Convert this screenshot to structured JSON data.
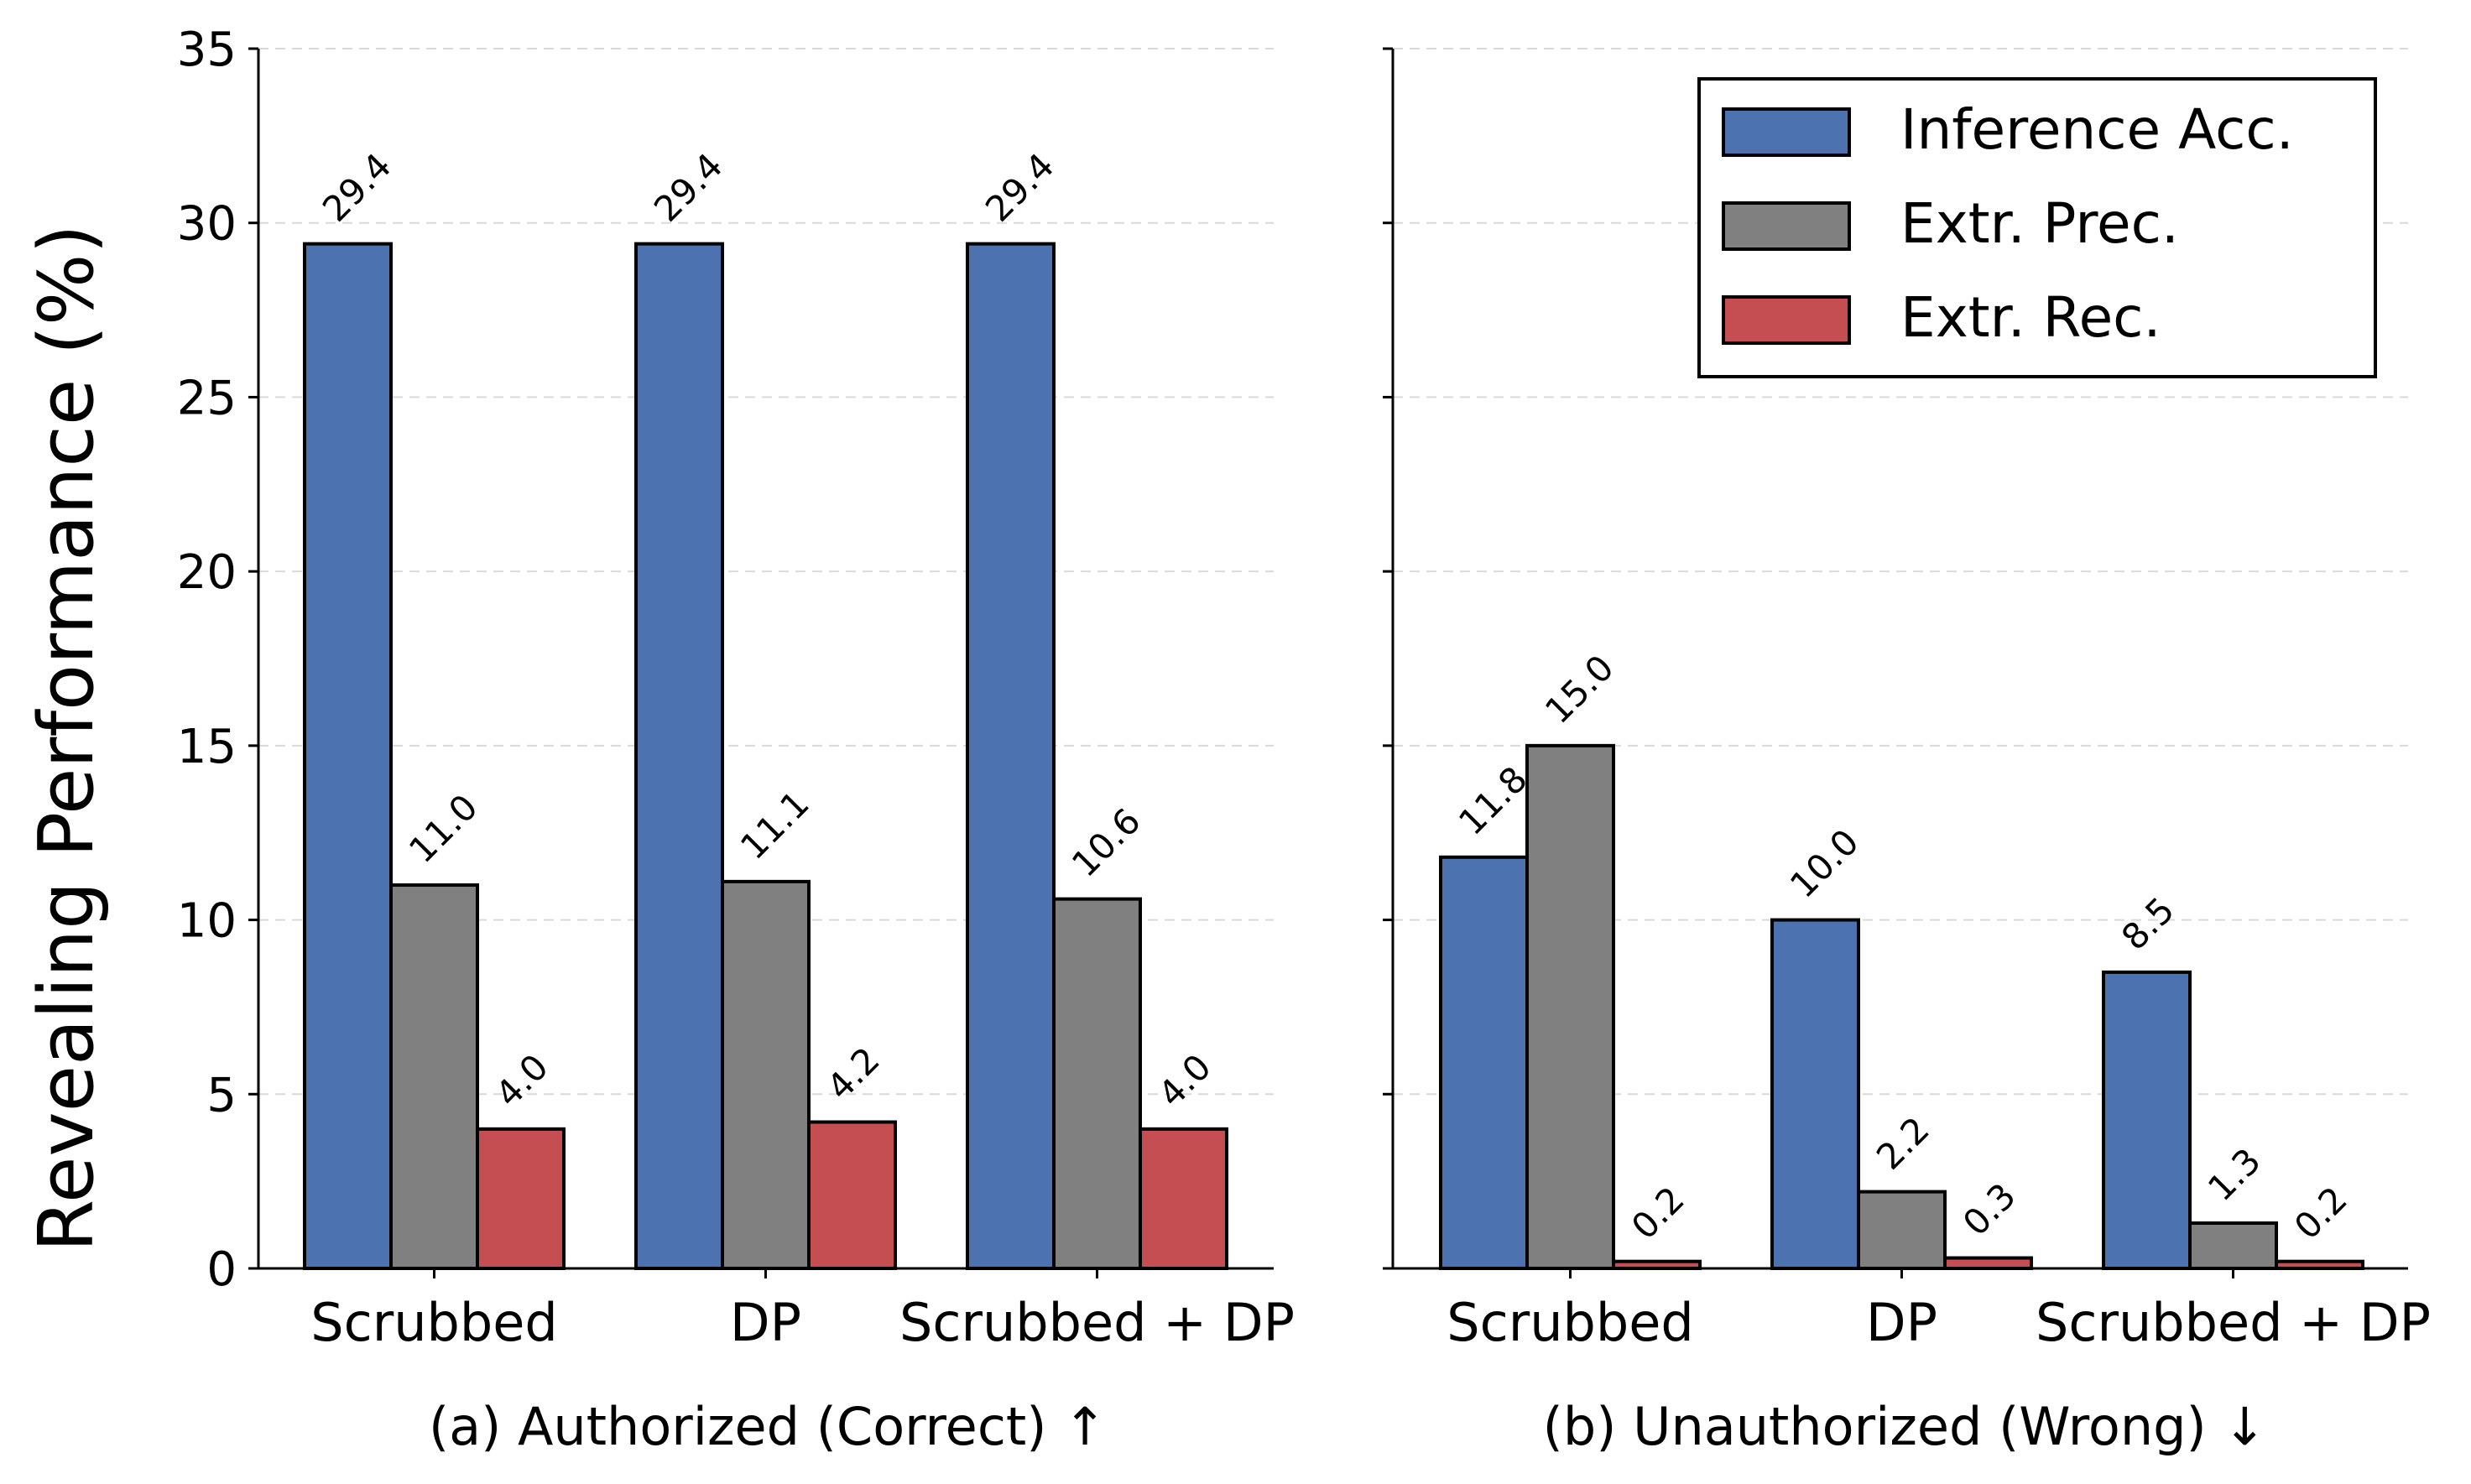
{
  "chart_data": [
    {
      "type": "bar",
      "panel": "a",
      "caption": "(a) Authorized (Correct) ↑",
      "categories": [
        "Scrubbed",
        "DP",
        "Scrubbed + DP"
      ],
      "series": [
        {
          "name": "Inference Acc.",
          "color": "#4c72b0",
          "values": [
            29.4,
            29.4,
            29.4
          ]
        },
        {
          "name": "Extr. Prec.",
          "color": "#808080",
          "values": [
            11.0,
            11.1,
            10.6
          ]
        },
        {
          "name": "Extr. Rec.",
          "color": "#c44e52",
          "values": [
            4.0,
            4.2,
            4.0
          ]
        }
      ],
      "ylabel": "Revealing Performance (%)",
      "ylim": [
        0,
        35
      ],
      "yticks": [
        0,
        5,
        10,
        15,
        20,
        25,
        30,
        35
      ],
      "grid": "horizontal dashed"
    },
    {
      "type": "bar",
      "panel": "b",
      "caption": "(b) Unauthorized (Wrong) ↓",
      "categories": [
        "Scrubbed",
        "DP",
        "Scrubbed + DP"
      ],
      "series": [
        {
          "name": "Inference Acc.",
          "color": "#4c72b0",
          "values": [
            11.8,
            10.0,
            8.5
          ]
        },
        {
          "name": "Extr. Prec.",
          "color": "#808080",
          "values": [
            15.0,
            2.2,
            1.3
          ]
        },
        {
          "name": "Extr. Rec.",
          "color": "#c44e52",
          "values": [
            0.2,
            0.3,
            0.2
          ]
        }
      ],
      "ylim": [
        0,
        35
      ],
      "grid": "horizontal dashed",
      "legend": {
        "position": "top-right",
        "entries": [
          "Inference Acc.",
          "Extr. Prec.",
          "Extr. Rec."
        ]
      }
    }
  ]
}
